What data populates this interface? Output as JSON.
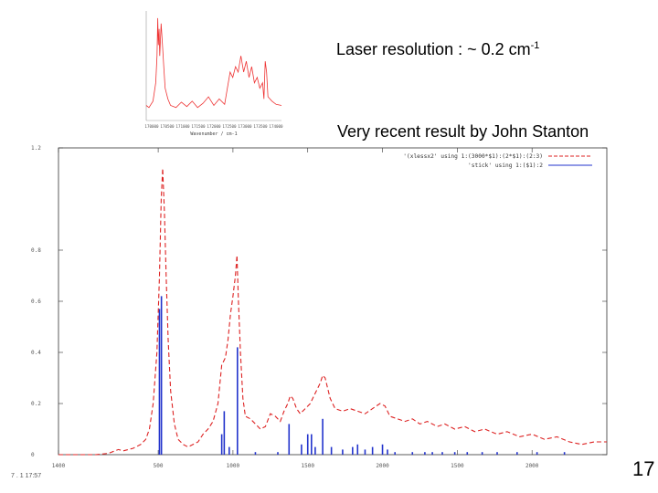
{
  "slide": {
    "title_line1_prefix": "Laser resolution  :  ~ 0.2 cm",
    "title_line1_sup": "-1",
    "title_line2": "Very recent result by John Stanton",
    "page_number": "17",
    "footer_text": "7 . 1 17:57"
  },
  "chart_data": [
    {
      "type": "line",
      "role": "inset-experimental-spectrum",
      "x_tick_labels": [
        "170000",
        "170500",
        "171000",
        "171500",
        "172000",
        "172500",
        "173000",
        "173500",
        "174000"
      ],
      "xlabel": "Wavenumber / cm-1",
      "series": [
        {
          "name": "",
          "color": "#ee3333",
          "points": [
            [
              0,
              0.14
            ],
            [
              0.02,
              0.12
            ],
            [
              0.05,
              0.18
            ],
            [
              0.07,
              0.35
            ],
            [
              0.08,
              0.6
            ],
            [
              0.085,
              0.95
            ],
            [
              0.09,
              0.7
            ],
            [
              0.095,
              0.85
            ],
            [
              0.1,
              0.6
            ],
            [
              0.11,
              0.9
            ],
            [
              0.12,
              0.7
            ],
            [
              0.13,
              0.5
            ],
            [
              0.14,
              0.3
            ],
            [
              0.16,
              0.2
            ],
            [
              0.18,
              0.14
            ],
            [
              0.22,
              0.12
            ],
            [
              0.26,
              0.17
            ],
            [
              0.3,
              0.13
            ],
            [
              0.34,
              0.18
            ],
            [
              0.38,
              0.12
            ],
            [
              0.42,
              0.16
            ],
            [
              0.46,
              0.22
            ],
            [
              0.5,
              0.14
            ],
            [
              0.54,
              0.2
            ],
            [
              0.58,
              0.15
            ],
            [
              0.6,
              0.3
            ],
            [
              0.62,
              0.45
            ],
            [
              0.64,
              0.4
            ],
            [
              0.66,
              0.5
            ],
            [
              0.68,
              0.45
            ],
            [
              0.7,
              0.6
            ],
            [
              0.72,
              0.45
            ],
            [
              0.74,
              0.55
            ],
            [
              0.76,
              0.4
            ],
            [
              0.78,
              0.5
            ],
            [
              0.8,
              0.35
            ],
            [
              0.82,
              0.4
            ],
            [
              0.84,
              0.3
            ],
            [
              0.86,
              0.35
            ],
            [
              0.87,
              0.2
            ],
            [
              0.88,
              0.55
            ],
            [
              0.89,
              0.45
            ],
            [
              0.9,
              0.22
            ],
            [
              0.93,
              0.18
            ],
            [
              0.96,
              0.15
            ],
            [
              1,
              0.14
            ]
          ]
        }
      ]
    },
    {
      "type": "line",
      "role": "main-simulated-spectrum",
      "xlim": [
        0,
        2200
      ],
      "ylim": [
        0,
        1.2
      ],
      "x_tick_labels": [
        "1400",
        "500",
        "1000",
        "1500",
        "2000",
        "1500",
        "2000"
      ],
      "y_tick_labels": [
        "0",
        "0.2",
        "0.4",
        "0.6",
        "0.8",
        "1.2"
      ],
      "legend": {
        "placement": "top-right",
        "entries": [
          {
            "label": "'(xlessx2' using 1:(3000*$1):(2*$1):(2:3)",
            "color": "#dd2222",
            "style": "dashed"
          },
          {
            "label": "'stick' using 1:($1):2",
            "color": "#2233cc",
            "style": "impulse"
          }
        ]
      },
      "series": [
        {
          "name": "(xlessx2' using 1:(3000*$1):(2*$1):(2:3)",
          "style": "dashed",
          "color": "#dd2222",
          "points": [
            [
              0,
              0
            ],
            [
              150,
              0
            ],
            [
              200,
              0.005
            ],
            [
              240,
              0.02
            ],
            [
              260,
              0.015
            ],
            [
              300,
              0.025
            ],
            [
              330,
              0.04
            ],
            [
              350,
              0.06
            ],
            [
              365,
              0.1
            ],
            [
              380,
              0.2
            ],
            [
              395,
              0.4
            ],
            [
              405,
              0.7
            ],
            [
              412,
              1.0
            ],
            [
              418,
              1.12
            ],
            [
              425,
              0.95
            ],
            [
              432,
              0.7
            ],
            [
              440,
              0.45
            ],
            [
              450,
              0.25
            ],
            [
              465,
              0.12
            ],
            [
              480,
              0.06
            ],
            [
              500,
              0.04
            ],
            [
              520,
              0.03
            ],
            [
              540,
              0.04
            ],
            [
              560,
              0.05
            ],
            [
              580,
              0.08
            ],
            [
              600,
              0.1
            ],
            [
              620,
              0.13
            ],
            [
              640,
              0.2
            ],
            [
              655,
              0.35
            ],
            [
              670,
              0.38
            ],
            [
              680,
              0.45
            ],
            [
              690,
              0.55
            ],
            [
              700,
              0.62
            ],
            [
              710,
              0.7
            ],
            [
              716,
              0.78
            ],
            [
              722,
              0.6
            ],
            [
              730,
              0.4
            ],
            [
              740,
              0.22
            ],
            [
              750,
              0.15
            ],
            [
              770,
              0.14
            ],
            [
              790,
              0.12
            ],
            [
              810,
              0.1
            ],
            [
              830,
              0.11
            ],
            [
              850,
              0.16
            ],
            [
              870,
              0.15
            ],
            [
              890,
              0.13
            ],
            [
              905,
              0.17
            ],
            [
              920,
              0.2
            ],
            [
              930,
              0.23
            ],
            [
              940,
              0.22
            ],
            [
              955,
              0.18
            ],
            [
              970,
              0.16
            ],
            [
              990,
              0.18
            ],
            [
              1010,
              0.2
            ],
            [
              1030,
              0.24
            ],
            [
              1050,
              0.28
            ],
            [
              1060,
              0.31
            ],
            [
              1070,
              0.3
            ],
            [
              1080,
              0.26
            ],
            [
              1090,
              0.22
            ],
            [
              1110,
              0.18
            ],
            [
              1140,
              0.17
            ],
            [
              1170,
              0.18
            ],
            [
              1200,
              0.17
            ],
            [
              1230,
              0.16
            ],
            [
              1260,
              0.18
            ],
            [
              1290,
              0.2
            ],
            [
              1310,
              0.19
            ],
            [
              1330,
              0.15
            ],
            [
              1360,
              0.14
            ],
            [
              1390,
              0.13
            ],
            [
              1420,
              0.14
            ],
            [
              1450,
              0.12
            ],
            [
              1480,
              0.13
            ],
            [
              1520,
              0.11
            ],
            [
              1550,
              0.12
            ],
            [
              1590,
              0.1
            ],
            [
              1630,
              0.11
            ],
            [
              1670,
              0.09
            ],
            [
              1710,
              0.1
            ],
            [
              1760,
              0.08
            ],
            [
              1800,
              0.09
            ],
            [
              1850,
              0.07
            ],
            [
              1900,
              0.08
            ],
            [
              1950,
              0.06
            ],
            [
              2000,
              0.07
            ],
            [
              2050,
              0.05
            ],
            [
              2100,
              0.04
            ],
            [
              2150,
              0.05
            ],
            [
              2200,
              0.05
            ]
          ]
        },
        {
          "name": "stick' using 1:($1):2",
          "style": "impulse",
          "color": "#2233cc",
          "sticks": [
            [
              405,
              0.57
            ],
            [
              413,
              0.62
            ],
            [
              655,
              0.08
            ],
            [
              665,
              0.17
            ],
            [
              685,
              0.03
            ],
            [
              718,
              0.42
            ],
            [
              790,
              0.01
            ],
            [
              880,
              0.01
            ],
            [
              925,
              0.12
            ],
            [
              975,
              0.04
            ],
            [
              1000,
              0.08
            ],
            [
              1015,
              0.08
            ],
            [
              1030,
              0.03
            ],
            [
              1060,
              0.14
            ],
            [
              1095,
              0.03
            ],
            [
              1140,
              0.02
            ],
            [
              1180,
              0.03
            ],
            [
              1200,
              0.04
            ],
            [
              1230,
              0.02
            ],
            [
              1260,
              0.03
            ],
            [
              1300,
              0.04
            ],
            [
              1320,
              0.02
            ],
            [
              1350,
              0.01
            ],
            [
              1420,
              0.01
            ],
            [
              1470,
              0.01
            ],
            [
              1500,
              0.01
            ],
            [
              1540,
              0.01
            ],
            [
              1590,
              0.01
            ],
            [
              1640,
              0.01
            ],
            [
              1700,
              0.01
            ],
            [
              1760,
              0.01
            ],
            [
              1840,
              0.01
            ],
            [
              1920,
              0.01
            ],
            [
              2030,
              0.01
            ]
          ]
        }
      ]
    }
  ]
}
